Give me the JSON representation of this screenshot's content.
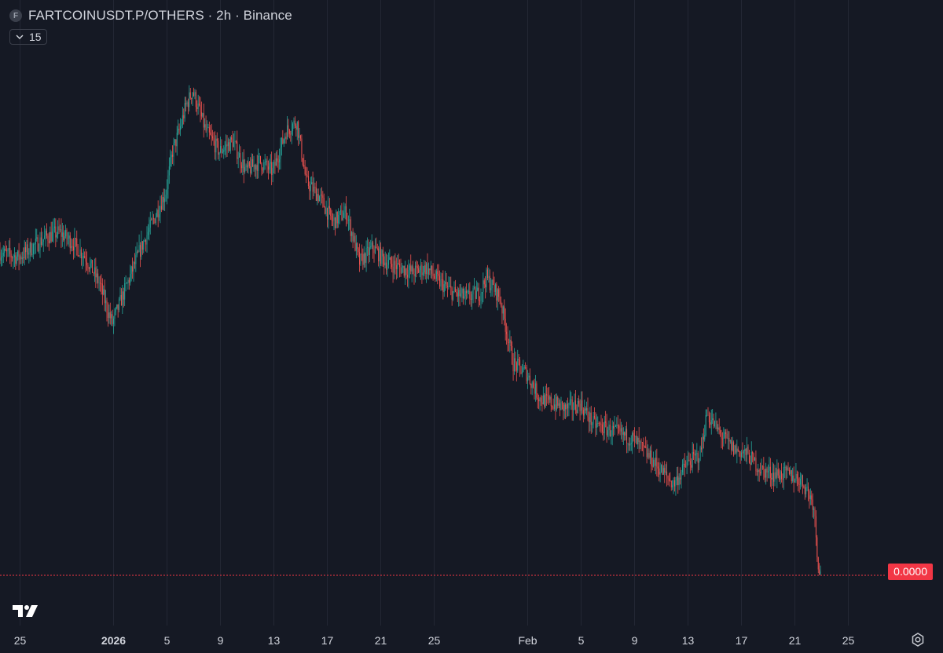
{
  "header": {
    "logo_letter": "F",
    "title": "FARTCOINUSDT.P/OTHERS · 2h · Binance",
    "indicator_count": "15"
  },
  "price_label": "0.0000",
  "colors": {
    "up": "#26a69a",
    "down": "#ef5350",
    "background": "#151924",
    "grid": "#232734",
    "price_line": "#f23645"
  },
  "icons": {
    "collapse": "chevron-down-icon",
    "brand": "tradingview-logo-icon",
    "settings": "gear-icon"
  },
  "chart_data": {
    "type": "candlestick",
    "timeframe": "2h",
    "x_ticks": [
      {
        "label": "25",
        "day": -7,
        "bold": false
      },
      {
        "label": "2026",
        "day": 0,
        "bold": true
      },
      {
        "label": "5",
        "day": 4,
        "bold": false
      },
      {
        "label": "9",
        "day": 8,
        "bold": false
      },
      {
        "label": "13",
        "day": 12,
        "bold": false
      },
      {
        "label": "17",
        "day": 16,
        "bold": false
      },
      {
        "label": "21",
        "day": 20,
        "bold": false
      },
      {
        "label": "25",
        "day": 24,
        "bold": false
      },
      {
        "label": "Feb",
        "day": 31,
        "bold": false
      },
      {
        "label": "5",
        "day": 35,
        "bold": false
      },
      {
        "label": "9",
        "day": 39,
        "bold": false
      },
      {
        "label": "13",
        "day": 43,
        "bold": false
      },
      {
        "label": "17",
        "day": 47,
        "bold": false
      },
      {
        "label": "21",
        "day": 51,
        "bold": false
      },
      {
        "label": "25",
        "day": 55,
        "bold": false
      }
    ],
    "x_range_days": [
      -8.5,
      63
    ],
    "y_range": [
      0,
      100
    ],
    "price_line_value": 0,
    "path_anchors": [
      [
        -8.5,
        64
      ],
      [
        -7,
        63
      ],
      [
        -5,
        67
      ],
      [
        -4,
        68
      ],
      [
        -3,
        66
      ],
      [
        -2,
        63
      ],
      [
        -1,
        58
      ],
      [
        -0.3,
        52
      ],
      [
        0,
        50
      ],
      [
        1,
        57
      ],
      [
        2,
        64
      ],
      [
        3,
        70
      ],
      [
        4,
        76
      ],
      [
        4.5,
        84
      ],
      [
        5,
        88
      ],
      [
        5.5,
        93
      ],
      [
        6,
        96
      ],
      [
        7,
        88
      ],
      [
        8,
        84
      ],
      [
        9,
        86
      ],
      [
        10,
        80
      ],
      [
        11,
        82
      ],
      [
        12,
        80
      ],
      [
        13,
        88
      ],
      [
        13.8,
        90
      ],
      [
        14.5,
        78
      ],
      [
        15.5,
        75
      ],
      [
        16.5,
        70
      ],
      [
        17.5,
        72
      ],
      [
        18.5,
        62
      ],
      [
        19.5,
        65
      ],
      [
        20.5,
        62
      ],
      [
        21.5,
        61
      ],
      [
        22.5,
        60
      ],
      [
        23.5,
        61
      ],
      [
        24.5,
        58
      ],
      [
        25.5,
        56
      ],
      [
        26.5,
        55
      ],
      [
        27.5,
        56
      ],
      [
        28,
        59
      ],
      [
        29,
        55
      ],
      [
        30,
        42
      ],
      [
        31,
        40
      ],
      [
        32,
        35
      ],
      [
        33,
        34
      ],
      [
        34,
        33
      ],
      [
        35,
        34
      ],
      [
        36,
        30
      ],
      [
        37,
        29
      ],
      [
        38,
        28
      ],
      [
        39,
        27
      ],
      [
        40,
        24
      ],
      [
        41,
        21
      ],
      [
        42,
        18
      ],
      [
        43,
        22
      ],
      [
        44,
        24
      ],
      [
        44.5,
        32
      ],
      [
        45.5,
        28
      ],
      [
        46.5,
        25
      ],
      [
        47.5,
        24
      ],
      [
        48.5,
        21
      ],
      [
        49.5,
        20
      ],
      [
        50.5,
        20
      ],
      [
        51.5,
        19
      ],
      [
        52,
        17
      ],
      [
        52.5,
        14
      ],
      [
        52.8,
        3
      ],
      [
        53,
        0
      ]
    ]
  }
}
